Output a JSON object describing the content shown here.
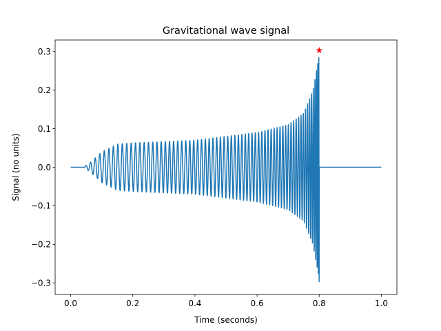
{
  "chart_data": {
    "type": "line",
    "title": "Gravitational wave signal",
    "xlabel": "Time (seconds)",
    "ylabel": "Signal (no units)",
    "xlim": [
      -0.05,
      1.05
    ],
    "ylim": [
      -0.33,
      0.33
    ],
    "xticks": [
      0.0,
      0.2,
      0.4,
      0.6,
      0.8,
      1.0
    ],
    "xtick_labels": [
      "0.0",
      "0.2",
      "0.4",
      "0.6",
      "0.8",
      "1.0"
    ],
    "yticks": [
      -0.3,
      -0.2,
      -0.1,
      0.0,
      0.1,
      0.2,
      0.3
    ],
    "ytick_labels": [
      "−0.3",
      "−0.2",
      "−0.1",
      "0.0",
      "0.1",
      "0.2",
      "0.3"
    ],
    "grid": false,
    "series": [
      {
        "color": "#1f77b4",
        "style": "line",
        "description_points": {
          "x": [
            0.0,
            0.04,
            0.06,
            0.1,
            0.15,
            0.2,
            0.4,
            0.6,
            0.7,
            0.75,
            0.78,
            0.795,
            0.8,
            0.805,
            1.0
          ],
          "envelope": [
            0.0,
            0.0,
            0.01,
            0.04,
            0.06,
            0.063,
            0.07,
            0.09,
            0.11,
            0.14,
            0.2,
            0.27,
            0.3,
            0.0,
            0.0
          ]
        }
      },
      {
        "color": "#ff0000",
        "style": "marker-star",
        "x": [
          0.8
        ],
        "y": [
          0.303
        ]
      }
    ]
  }
}
